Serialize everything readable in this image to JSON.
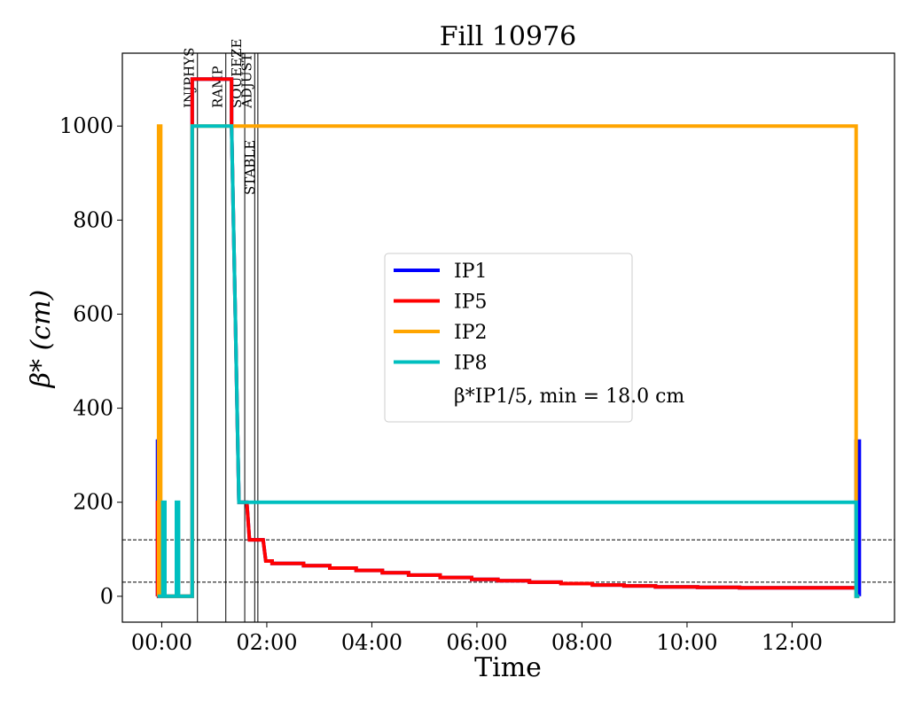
{
  "chart_data": {
    "type": "line",
    "title": "Fill 10976",
    "xlabel": "Time",
    "ylabel": "β* (cm)",
    "xlim": [
      -0.75,
      13.95
    ],
    "ylim": [
      -55,
      1155
    ],
    "x_ticks": [
      {
        "x": 0,
        "label": "00:00"
      },
      {
        "x": 2,
        "label": "02:00"
      },
      {
        "x": 4,
        "label": "04:00"
      },
      {
        "x": 6,
        "label": "06:00"
      },
      {
        "x": 8,
        "label": "08:00"
      },
      {
        "x": 10,
        "label": "10:00"
      },
      {
        "x": 12,
        "label": "12:00"
      }
    ],
    "y_ticks": [
      0,
      200,
      400,
      600,
      800,
      1000
    ],
    "legend_position": "center",
    "legend_note": "β*IP1/5, min = 18.0 cm",
    "mode_lines": [
      {
        "label": "INJPHYS",
        "x": 0.68
      },
      {
        "label": "RAMP",
        "x": 1.22
      },
      {
        "label": "SQUEEZE",
        "x": 1.58
      },
      {
        "label": "ADJUST",
        "x": 1.77
      },
      {
        "label": "STABLE",
        "x": 1.83
      }
    ],
    "reference_lines": [
      120,
      30
    ],
    "series": [
      {
        "name": "IP1",
        "color": "#0000ff",
        "points": [
          [
            -0.08,
            0
          ],
          [
            -0.08,
            330
          ],
          [
            -0.06,
            330
          ],
          [
            -0.06,
            0
          ],
          [
            0.58,
            0
          ],
          [
            0.58,
            1100
          ],
          [
            1.33,
            1100
          ],
          [
            1.33,
            1000
          ],
          [
            1.4,
            600
          ],
          [
            1.47,
            200
          ],
          [
            1.62,
            200
          ],
          [
            1.67,
            120
          ],
          [
            1.93,
            120
          ],
          [
            1.98,
            75
          ],
          [
            2.1,
            75
          ],
          [
            2.1,
            70
          ],
          [
            2.7,
            70
          ],
          [
            2.7,
            65
          ],
          [
            3.2,
            65
          ],
          [
            3.2,
            60
          ],
          [
            3.7,
            60
          ],
          [
            3.7,
            55
          ],
          [
            4.2,
            55
          ],
          [
            4.2,
            50
          ],
          [
            4.7,
            50
          ],
          [
            4.7,
            45
          ],
          [
            5.3,
            45
          ],
          [
            5.3,
            40
          ],
          [
            5.9,
            40
          ],
          [
            5.9,
            36
          ],
          [
            6.4,
            36
          ],
          [
            6.4,
            33
          ],
          [
            7.0,
            33
          ],
          [
            7.0,
            30
          ],
          [
            7.6,
            30
          ],
          [
            7.6,
            27
          ],
          [
            8.2,
            27
          ],
          [
            8.2,
            24
          ],
          [
            8.8,
            24
          ],
          [
            8.8,
            22
          ],
          [
            9.4,
            22
          ],
          [
            9.4,
            20
          ],
          [
            10.2,
            20
          ],
          [
            10.2,
            19
          ],
          [
            11.0,
            19
          ],
          [
            11.0,
            18
          ],
          [
            13.22,
            18
          ],
          [
            13.22,
            330
          ],
          [
            13.28,
            330
          ],
          [
            13.28,
            0
          ]
        ]
      },
      {
        "name": "IP5",
        "color": "#ff0000",
        "points": [
          [
            -0.08,
            0
          ],
          [
            -0.08,
            200
          ],
          [
            -0.06,
            200
          ],
          [
            -0.06,
            0
          ],
          [
            0.58,
            0
          ],
          [
            0.58,
            1100
          ],
          [
            1.33,
            1100
          ],
          [
            1.33,
            1000
          ],
          [
            1.4,
            600
          ],
          [
            1.47,
            200
          ],
          [
            1.62,
            200
          ],
          [
            1.67,
            120
          ],
          [
            1.93,
            120
          ],
          [
            1.98,
            75
          ],
          [
            2.1,
            75
          ],
          [
            2.1,
            70
          ],
          [
            2.7,
            70
          ],
          [
            2.7,
            65
          ],
          [
            3.2,
            65
          ],
          [
            3.2,
            60
          ],
          [
            3.7,
            60
          ],
          [
            3.7,
            55
          ],
          [
            4.2,
            55
          ],
          [
            4.2,
            50
          ],
          [
            4.7,
            50
          ],
          [
            4.7,
            45
          ],
          [
            5.3,
            45
          ],
          [
            5.3,
            40
          ],
          [
            5.9,
            40
          ],
          [
            5.9,
            36
          ],
          [
            6.4,
            36
          ],
          [
            6.4,
            33
          ],
          [
            7.0,
            33
          ],
          [
            7.0,
            30
          ],
          [
            7.6,
            30
          ],
          [
            7.6,
            27
          ],
          [
            8.2,
            27
          ],
          [
            8.2,
            24
          ],
          [
            8.8,
            24
          ],
          [
            8.8,
            22
          ],
          [
            9.4,
            22
          ],
          [
            9.4,
            20
          ],
          [
            10.2,
            20
          ],
          [
            10.2,
            19
          ],
          [
            11.0,
            19
          ],
          [
            11.0,
            18
          ],
          [
            13.22,
            18
          ],
          [
            13.22,
            0
          ],
          [
            13.28,
            0
          ]
        ]
      },
      {
        "name": "IP2",
        "color": "#ffa500",
        "points": [
          [
            -0.06,
            0
          ],
          [
            -0.06,
            1000
          ],
          [
            -0.02,
            1000
          ],
          [
            -0.02,
            0
          ],
          [
            0.58,
            0
          ],
          [
            0.58,
            1000
          ],
          [
            13.22,
            1000
          ],
          [
            13.22,
            0
          ],
          [
            13.28,
            0
          ]
        ]
      },
      {
        "name": "IP8",
        "color": "#00bfbf",
        "points": [
          [
            -0.08,
            0
          ],
          [
            0.02,
            0
          ],
          [
            0.02,
            200
          ],
          [
            0.06,
            200
          ],
          [
            0.06,
            0
          ],
          [
            0.28,
            0
          ],
          [
            0.28,
            200
          ],
          [
            0.32,
            200
          ],
          [
            0.32,
            0
          ],
          [
            0.58,
            0
          ],
          [
            0.58,
            1000
          ],
          [
            1.33,
            1000
          ],
          [
            1.4,
            600
          ],
          [
            1.47,
            200
          ],
          [
            13.22,
            200
          ],
          [
            13.22,
            0
          ],
          [
            13.28,
            0
          ]
        ]
      }
    ]
  }
}
